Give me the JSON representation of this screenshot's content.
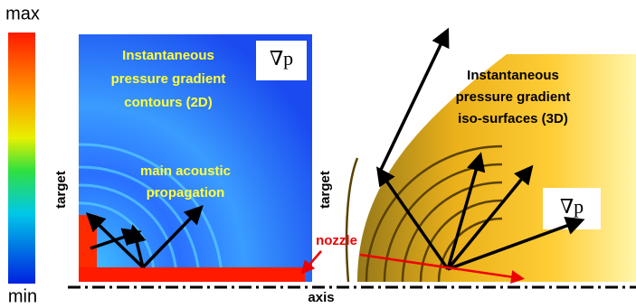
{
  "colorbar": {
    "max": "max",
    "min": "min"
  },
  "left_panel": {
    "title_lines": [
      "Instantaneous",
      "pressure gradient",
      "contours (2D)"
    ],
    "annotation_lines": [
      "main acoustic",
      "propagation"
    ],
    "symbol": "∇p",
    "y_label": "target"
  },
  "right_panel": {
    "title_lines": [
      "Instantaneous",
      "pressure gradient",
      "iso-surfaces (3D)"
    ],
    "symbol": "∇p",
    "y_label": "target"
  },
  "axis_label": "axis",
  "nozzle_label": "nozzle"
}
